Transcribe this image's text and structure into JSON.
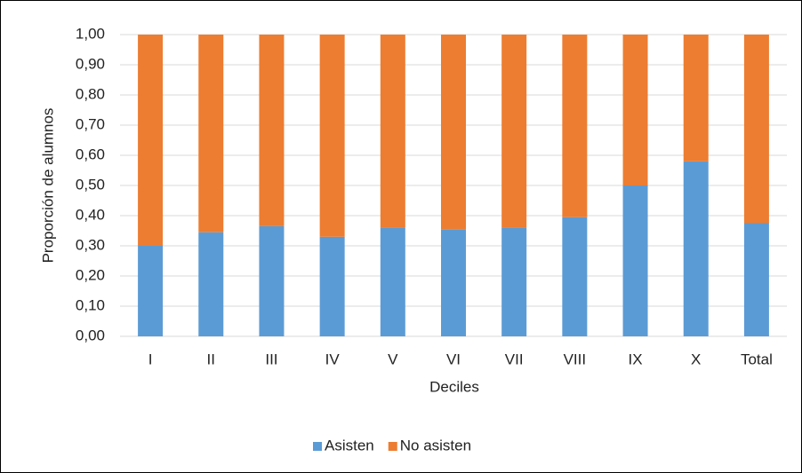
{
  "chart_data": {
    "type": "stacked_bar",
    "x_label": "Deciles",
    "y_label": "Proporción de alumnos",
    "categories": [
      "I",
      "II",
      "III",
      "IV",
      "V",
      "VI",
      "VII",
      "VIII",
      "IX",
      "X",
      "Total"
    ],
    "series": [
      {
        "name": "Asisten",
        "color": "#5b9bd5",
        "values": [
          0.3,
          0.345,
          0.365,
          0.33,
          0.36,
          0.355,
          0.36,
          0.395,
          0.5,
          0.58,
          0.375
        ]
      },
      {
        "name": "No asisten",
        "color": "#ed7d31",
        "values": [
          0.7,
          0.655,
          0.635,
          0.67,
          0.64,
          0.645,
          0.64,
          0.605,
          0.5,
          0.42,
          0.625
        ]
      }
    ],
    "ylim": [
      0,
      1
    ],
    "yticks": [
      {
        "value": 0,
        "label": "0,00"
      },
      {
        "value": 0.1,
        "label": "0,10"
      },
      {
        "value": 0.2,
        "label": "0,20"
      },
      {
        "value": 0.3,
        "label": "0,30"
      },
      {
        "value": 0.4,
        "label": "0,40"
      },
      {
        "value": 0.5,
        "label": "0,50"
      },
      {
        "value": 0.6,
        "label": "0,60"
      },
      {
        "value": 0.7,
        "label": "0,70"
      },
      {
        "value": 0.8,
        "label": "0,80"
      },
      {
        "value": 0.9,
        "label": "0,90"
      },
      {
        "value": 1,
        "label": "1,00"
      }
    ],
    "grid": true,
    "legend": "bottom"
  }
}
